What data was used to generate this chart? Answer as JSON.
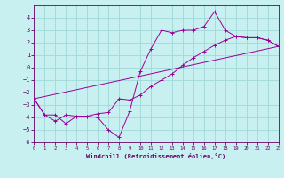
{
  "xlabel": "Windchill (Refroidissement éolien,°C)",
  "background_color": "#c8f0f0",
  "grid_color": "#a0d8d8",
  "line_color": "#990099",
  "xlim": [
    0,
    23
  ],
  "ylim": [
    -6,
    5
  ],
  "xticks": [
    0,
    1,
    2,
    3,
    4,
    5,
    6,
    7,
    8,
    9,
    10,
    11,
    12,
    13,
    14,
    15,
    16,
    17,
    18,
    19,
    20,
    21,
    22,
    23
  ],
  "yticks": [
    -6,
    -5,
    -4,
    -3,
    -2,
    -1,
    0,
    1,
    2,
    3,
    4
  ],
  "series1_x": [
    0,
    1,
    2,
    3,
    4,
    5,
    6,
    7,
    8,
    9,
    10,
    11,
    12,
    13,
    14,
    15,
    16,
    17,
    18,
    19,
    20,
    21,
    22,
    23
  ],
  "series1_y": [
    -2.5,
    -3.8,
    -3.8,
    -4.5,
    -3.9,
    -3.9,
    -4.0,
    -5.0,
    -5.6,
    -3.5,
    -0.3,
    1.5,
    3.0,
    2.8,
    3.0,
    3.0,
    3.3,
    4.5,
    3.0,
    2.5,
    2.4,
    2.4,
    2.2,
    1.7
  ],
  "series2_x": [
    0,
    1,
    2,
    3,
    4,
    5,
    6,
    7,
    8,
    9,
    10,
    11,
    12,
    13,
    14,
    15,
    16,
    17,
    18,
    19,
    20,
    21,
    22,
    23
  ],
  "series2_y": [
    -2.5,
    -3.8,
    -4.3,
    -3.8,
    -3.9,
    -3.9,
    -3.7,
    -3.6,
    -2.5,
    -2.6,
    -2.2,
    -1.5,
    -1.0,
    -0.5,
    0.2,
    0.8,
    1.3,
    1.8,
    2.2,
    2.5,
    2.4,
    2.4,
    2.2,
    1.7
  ],
  "series3_x": [
    0,
    23
  ],
  "series3_y": [
    -2.5,
    1.7
  ]
}
